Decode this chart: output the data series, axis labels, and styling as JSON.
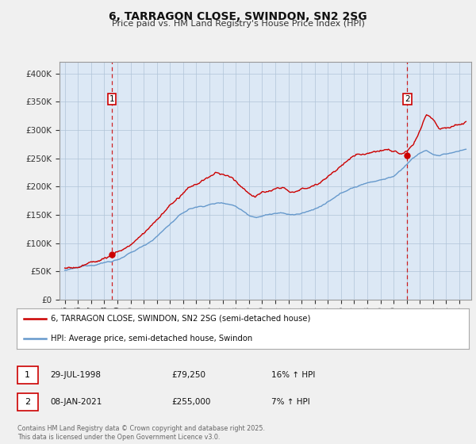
{
  "title": "6, TARRAGON CLOSE, SWINDON, SN2 2SG",
  "subtitle": "Price paid vs. HM Land Registry's House Price Index (HPI)",
  "legend_line1": "6, TARRAGON CLOSE, SWINDON, SN2 2SG (semi-detached house)",
  "legend_line2": "HPI: Average price, semi-detached house, Swindon",
  "annotation1_date": "29-JUL-1998",
  "annotation1_price": "£79,250",
  "annotation1_hpi": "16% ↑ HPI",
  "annotation1_year": 1998.58,
  "annotation1_value": 79250,
  "annotation2_date": "08-JAN-2021",
  "annotation2_price": "£255,000",
  "annotation2_hpi": "7% ↑ HPI",
  "annotation2_year": 2021.03,
  "annotation2_value": 255000,
  "price_color": "#cc0000",
  "hpi_color": "#6699cc",
  "background_color": "#f0f0f0",
  "plot_bg_color": "#dce8f5",
  "ylim": [
    0,
    420000
  ],
  "yticks": [
    0,
    50000,
    100000,
    150000,
    200000,
    250000,
    300000,
    350000,
    400000
  ],
  "footer": "Contains HM Land Registry data © Crown copyright and database right 2025.\nThis data is licensed under the Open Government Licence v3.0."
}
